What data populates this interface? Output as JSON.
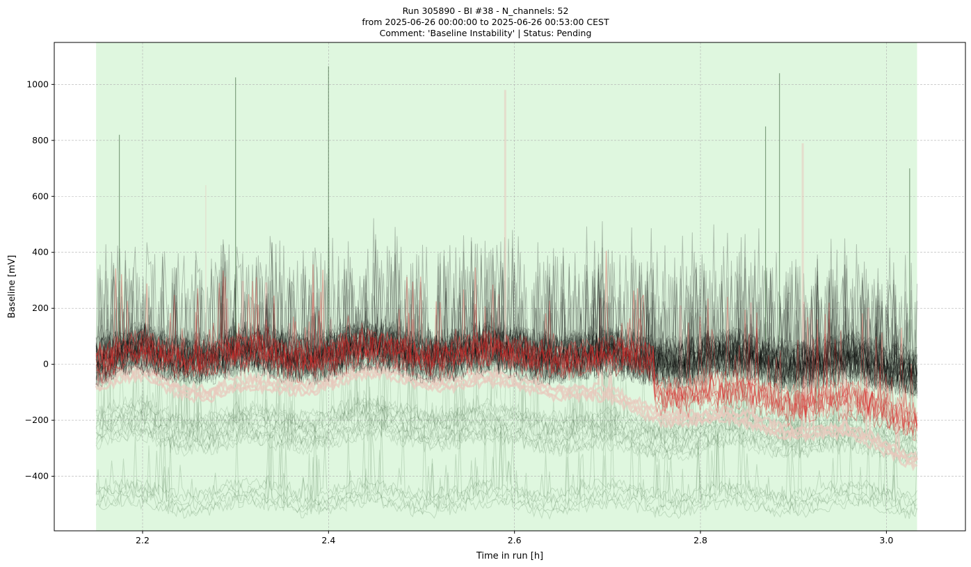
{
  "chart_data": {
    "type": "line",
    "title_lines": [
      "Run 305890  -  BI #38  -  N_channels: 52",
      "from  2025-06-26 00:00:00  to  2025-06-26 00:53:00 CEST",
      "Comment: 'Baseline Instability' | Status: Pending"
    ],
    "xlabel": "Time in run [h]",
    "ylabel": "Baseline [mV]",
    "xlim": [
      2.105,
      3.085
    ],
    "ylim": [
      -595,
      1150
    ],
    "xticks": [
      2.2,
      2.4,
      2.6,
      2.8,
      3.0
    ],
    "xtick_labels": [
      "2.2",
      "2.4",
      "2.6",
      "2.8",
      "3.0"
    ],
    "yticks": [
      -400,
      -200,
      0,
      200,
      400,
      600,
      800,
      1000
    ],
    "ytick_labels": [
      "−400",
      "−200",
      "0",
      "200",
      "400",
      "600",
      "800",
      "1000"
    ],
    "grid": true,
    "highlight_span": {
      "x_start": 2.15,
      "x_end": 3.033,
      "color": "#dff7df"
    },
    "series_colors": {
      "normal": "#000000",
      "flagged": "#d62728",
      "flagged_faint": "#e8c8bc",
      "outlier": "#2f5a2f"
    },
    "n_channels": 52,
    "data_description_points": {
      "x": [
        2.15,
        2.2,
        2.27,
        2.35,
        2.47,
        2.55,
        2.62,
        2.68,
        2.75,
        2.85,
        2.95,
        3.033
      ],
      "median_baseline": [
        0,
        40,
        25,
        30,
        45,
        30,
        35,
        20,
        15,
        10,
        -5,
        -20
      ],
      "lower_envelope": [
        -60,
        -20,
        -80,
        -55,
        -15,
        -50,
        -45,
        -90,
        -110,
        -80,
        -110,
        -130
      ],
      "flagged_lower": [
        -60,
        -20,
        -80,
        -55,
        -15,
        -50,
        -45,
        -90,
        -150,
        -190,
        -230,
        -310
      ],
      "outlier_bottom": [
        -450,
        -430,
        -480,
        -470,
        -440,
        -460,
        -470,
        -480,
        -490,
        -500,
        -480,
        -510
      ],
      "spike_peaks_x": [
        2.175,
        2.268,
        2.3,
        2.4,
        2.59,
        2.87,
        2.885,
        2.91,
        3.025
      ],
      "spike_peaks_y": [
        820,
        640,
        1025,
        1065,
        980,
        850,
        1040,
        790,
        700
      ]
    }
  }
}
